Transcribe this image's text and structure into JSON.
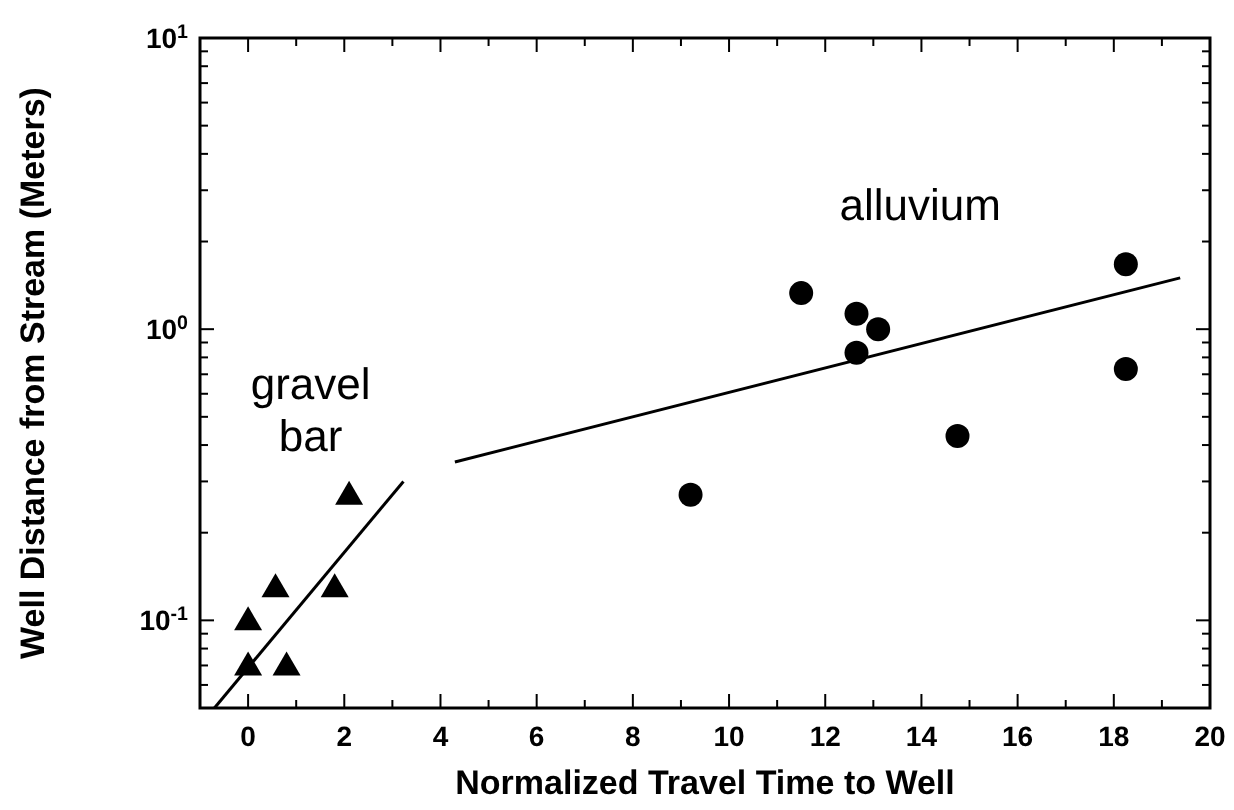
{
  "chart_data": {
    "type": "scatter",
    "xlabel": "Normalized Travel Time to Well",
    "ylabel": "Well Distance from Stream (Meters)",
    "log": "y",
    "grid": false,
    "xlim": [
      -1,
      20
    ],
    "xticks": [
      0,
      {
        "value": 1,
        "label": null
      },
      2,
      {
        "value": 3,
        "label": null
      },
      4,
      {
        "value": 5,
        "label": null
      },
      6,
      {
        "value": 7,
        "label": null
      },
      8,
      {
        "value": 9,
        "label": null
      },
      10,
      {
        "value": 11,
        "label": null
      },
      12,
      {
        "value": 13,
        "label": null
      },
      14,
      {
        "value": 15,
        "label": null
      },
      16,
      {
        "value": 17,
        "label": null
      },
      18,
      {
        "value": 19,
        "label": null
      },
      20
    ],
    "ylim": [
      0.05,
      10
    ],
    "yticks": [
      {
        "value": 0.06,
        "label": null
      },
      {
        "value": 0.07,
        "label": null
      },
      {
        "value": 0.08,
        "label": null
      },
      {
        "value": 0.09,
        "label": null
      },
      {
        "value": 0.1,
        "label": "10$^{-1}$"
      },
      {
        "value": 0.2,
        "label": null
      },
      {
        "value": 0.3,
        "label": null
      },
      {
        "value": 0.4,
        "label": null
      },
      {
        "value": 0.5,
        "label": null
      },
      {
        "value": 0.6,
        "label": null
      },
      {
        "value": 0.7,
        "label": null
      },
      {
        "value": 0.8,
        "label": null
      },
      {
        "value": 0.9,
        "label": null
      },
      {
        "value": 1,
        "label": "10$^{0}$"
      },
      {
        "value": 2,
        "label": null
      },
      {
        "value": 3,
        "label": null
      },
      {
        "value": 4,
        "label": null
      },
      {
        "value": 5,
        "label": null
      },
      {
        "value": 6,
        "label": null
      },
      {
        "value": 7,
        "label": null
      },
      {
        "value": 8,
        "label": null
      },
      {
        "value": 9,
        "label": null
      },
      {
        "value": 10,
        "label": "10$^{1}$"
      }
    ],
    "series": [
      {
        "name": "gravel bar",
        "type": "scatter",
        "marker": "triangle",
        "color": "#000000",
        "x": [
          0,
          0,
          0.57,
          0.8,
          1.8,
          2.1
        ],
        "values": [
          0.1,
          0.07,
          0.13,
          0.07,
          0.13,
          0.27
        ]
      },
      {
        "name": "alluvium",
        "type": "scatter",
        "marker": "circle",
        "color": "#000000",
        "x": [
          9.2,
          11.5,
          12.65,
          13.1,
          12.65,
          14.75,
          18.25,
          18.25
        ],
        "values": [
          0.27,
          1.33,
          1.13,
          1.0,
          0.83,
          0.43,
          1.67,
          0.73
        ]
      },
      {
        "type": "line",
        "marker": "none",
        "line_style": "solid",
        "color": "#000000",
        "x": [
          -0.7,
          3.23
        ],
        "values": [
          0.05,
          0.3
        ]
      },
      {
        "type": "line",
        "marker": "none",
        "line_style": "solid",
        "color": "#000000",
        "x": [
          4.3,
          19.38
        ],
        "values": [
          0.35,
          1.5
        ]
      }
    ]
  }
}
